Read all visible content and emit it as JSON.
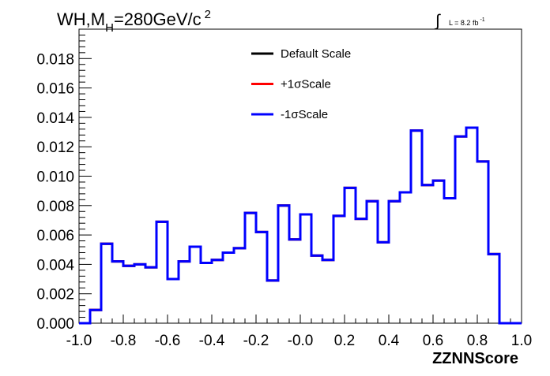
{
  "chart_data": {
    "type": "line",
    "title_prefix": "WH,M",
    "title_sub": "H",
    "title_main": "=280GeV/c",
    "title_sup": "2",
    "lumi_prefix": "L = 8.2 fb",
    "lumi_sup": "-1",
    "xlabel": "ZZNNScore",
    "ylabel": "",
    "xlim": [
      -1.0,
      1.0
    ],
    "ylim": [
      0.0,
      0.02
    ],
    "xticks": [
      "-1.0",
      "-0.8",
      "-0.6",
      "-0.4",
      "-0.2",
      "-0.0",
      "0.2",
      "0.4",
      "0.6",
      "0.8",
      "1.0"
    ],
    "yticks": [
      "0.000",
      "0.002",
      "0.004",
      "0.006",
      "0.008",
      "0.010",
      "0.012",
      "0.014",
      "0.016",
      "0.018"
    ],
    "legend_position": "top-center",
    "bin_edges": [
      -1.0,
      -0.95,
      -0.9,
      -0.85,
      -0.8,
      -0.75,
      -0.7,
      -0.65,
      -0.6,
      -0.55,
      -0.5,
      -0.45,
      -0.4,
      -0.35,
      -0.3,
      -0.25,
      -0.2,
      -0.15,
      -0.1,
      -0.05,
      0.0,
      0.05,
      0.1,
      0.15,
      0.2,
      0.25,
      0.3,
      0.35,
      0.4,
      0.45,
      0.5,
      0.55,
      0.6,
      0.65,
      0.7,
      0.75,
      0.8,
      0.85,
      0.9,
      0.95,
      1.0
    ],
    "series": [
      {
        "name": "Default Scale",
        "color": "#000000",
        "values": [
          0.0,
          0.0009,
          0.0054,
          0.0042,
          0.0039,
          0.004,
          0.0038,
          0.0069,
          0.003,
          0.0042,
          0.0052,
          0.0041,
          0.0043,
          0.0048,
          0.0051,
          0.0075,
          0.0062,
          0.0029,
          0.008,
          0.0057,
          0.0074,
          0.0046,
          0.0043,
          0.0073,
          0.0092,
          0.0071,
          0.0083,
          0.0055,
          0.0083,
          0.0089,
          0.0131,
          0.0094,
          0.0097,
          0.0085,
          0.0127,
          0.0133,
          0.011,
          0.0047,
          0.0,
          0.0
        ]
      },
      {
        "name": "+1σScale",
        "color": "#ff0000",
        "values": [
          0.0,
          0.0009,
          0.0054,
          0.0042,
          0.0039,
          0.004,
          0.0038,
          0.0069,
          0.003,
          0.0042,
          0.0052,
          0.0041,
          0.0043,
          0.0048,
          0.0051,
          0.0075,
          0.0062,
          0.0029,
          0.008,
          0.0057,
          0.0074,
          0.0046,
          0.0043,
          0.0073,
          0.0092,
          0.0071,
          0.0083,
          0.0055,
          0.0083,
          0.0089,
          0.0131,
          0.0094,
          0.0097,
          0.0085,
          0.0127,
          0.0133,
          0.011,
          0.0047,
          0.0,
          0.0
        ]
      },
      {
        "name": "-1σScale",
        "color": "#0000ff",
        "values": [
          0.0,
          0.0009,
          0.0054,
          0.0042,
          0.0039,
          0.004,
          0.0038,
          0.0069,
          0.003,
          0.0042,
          0.0052,
          0.0041,
          0.0043,
          0.0048,
          0.0051,
          0.0075,
          0.0062,
          0.0029,
          0.008,
          0.0057,
          0.0074,
          0.0046,
          0.0043,
          0.0073,
          0.0092,
          0.0071,
          0.0083,
          0.0055,
          0.0083,
          0.0089,
          0.0131,
          0.0094,
          0.0097,
          0.0085,
          0.0127,
          0.0133,
          0.011,
          0.0047,
          0.0,
          0.0
        ]
      }
    ]
  }
}
